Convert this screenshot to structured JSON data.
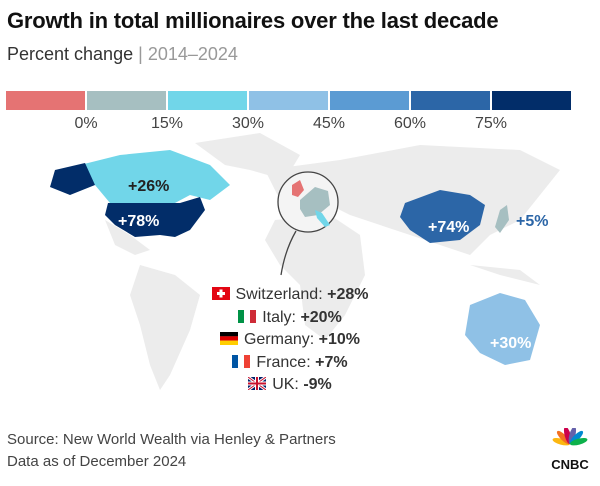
{
  "header": {
    "title": "Growth in total millionaires over the last decade",
    "subtitle_a": "Percent change",
    "subtitle_sep": "|",
    "subtitle_b": "2014–2024"
  },
  "legend": {
    "colors": [
      "#e57373",
      "#a6bfc1",
      "#71d6e9",
      "#8fc1e6",
      "#5b9bd3",
      "#2c66a7",
      "#022d69"
    ],
    "ticks": [
      "0%",
      "15%",
      "30%",
      "45%",
      "60%",
      "75%"
    ]
  },
  "map_labels": {
    "canada": "+26%",
    "usa": "+78%",
    "china": "+74%",
    "japan": "+5%",
    "australia": "+30%"
  },
  "region_colors": {
    "canada": "#71d6e9",
    "usa": "#022d69",
    "china": "#2c66a7",
    "japan": "#a6bfc1",
    "australia": "#8fc1e6",
    "land": "#ececec"
  },
  "europe": [
    {
      "flag": "switzerland-flag-icon",
      "label": "Switzerland:",
      "value": "+28%"
    },
    {
      "flag": "italy-flag-icon",
      "label": "Italy:",
      "value": "+20%"
    },
    {
      "flag": "germany-flag-icon",
      "label": "Germany:",
      "value": "+10%"
    },
    {
      "flag": "france-flag-icon",
      "label": "France:",
      "value": "+7%"
    },
    {
      "flag": "uk-flag-icon",
      "label": "UK:",
      "value": "-9%"
    }
  ],
  "footer": {
    "source": "Source: New World Wealth via Henley & Partners",
    "date": "Data as of December 2024",
    "logo": "CNBC"
  }
}
